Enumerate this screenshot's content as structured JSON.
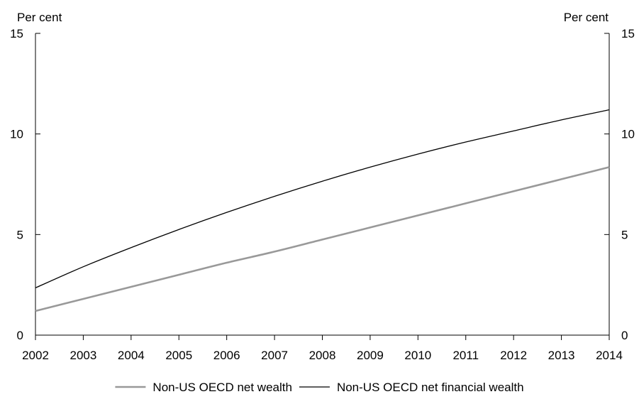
{
  "chart_data": {
    "type": "line",
    "title": "",
    "xlabel": "",
    "y_unit_left": "Per cent",
    "y_unit_right": "Per cent",
    "x_ticks": [
      "2002",
      "2003",
      "2004",
      "2005",
      "2006",
      "2007",
      "2008",
      "2009",
      "2010",
      "2011",
      "2012",
      "2013",
      "2014"
    ],
    "x": [
      2002,
      2003,
      2004,
      2005,
      2006,
      2007,
      2008,
      2009,
      2010,
      2011,
      2012,
      2013,
      2014
    ],
    "xlim": [
      2002,
      2014
    ],
    "ylim": [
      0,
      15
    ],
    "y_ticks": [
      "0",
      "5",
      "10",
      "15"
    ],
    "grid": false,
    "legend_position": "bottom",
    "series": [
      {
        "name": "Non-US OECD net wealth",
        "color": "#999999",
        "values": [
          1.2,
          1.8,
          2.4,
          3.0,
          3.6,
          4.15,
          4.75,
          5.35,
          5.95,
          6.55,
          7.15,
          7.75,
          8.35
        ]
      },
      {
        "name": "Non-US OECD net financial wealth",
        "color": "#000000",
        "values": [
          2.35,
          3.4,
          4.35,
          5.25,
          6.1,
          6.9,
          7.65,
          8.35,
          9.0,
          9.6,
          10.15,
          10.7,
          11.2
        ]
      }
    ]
  }
}
